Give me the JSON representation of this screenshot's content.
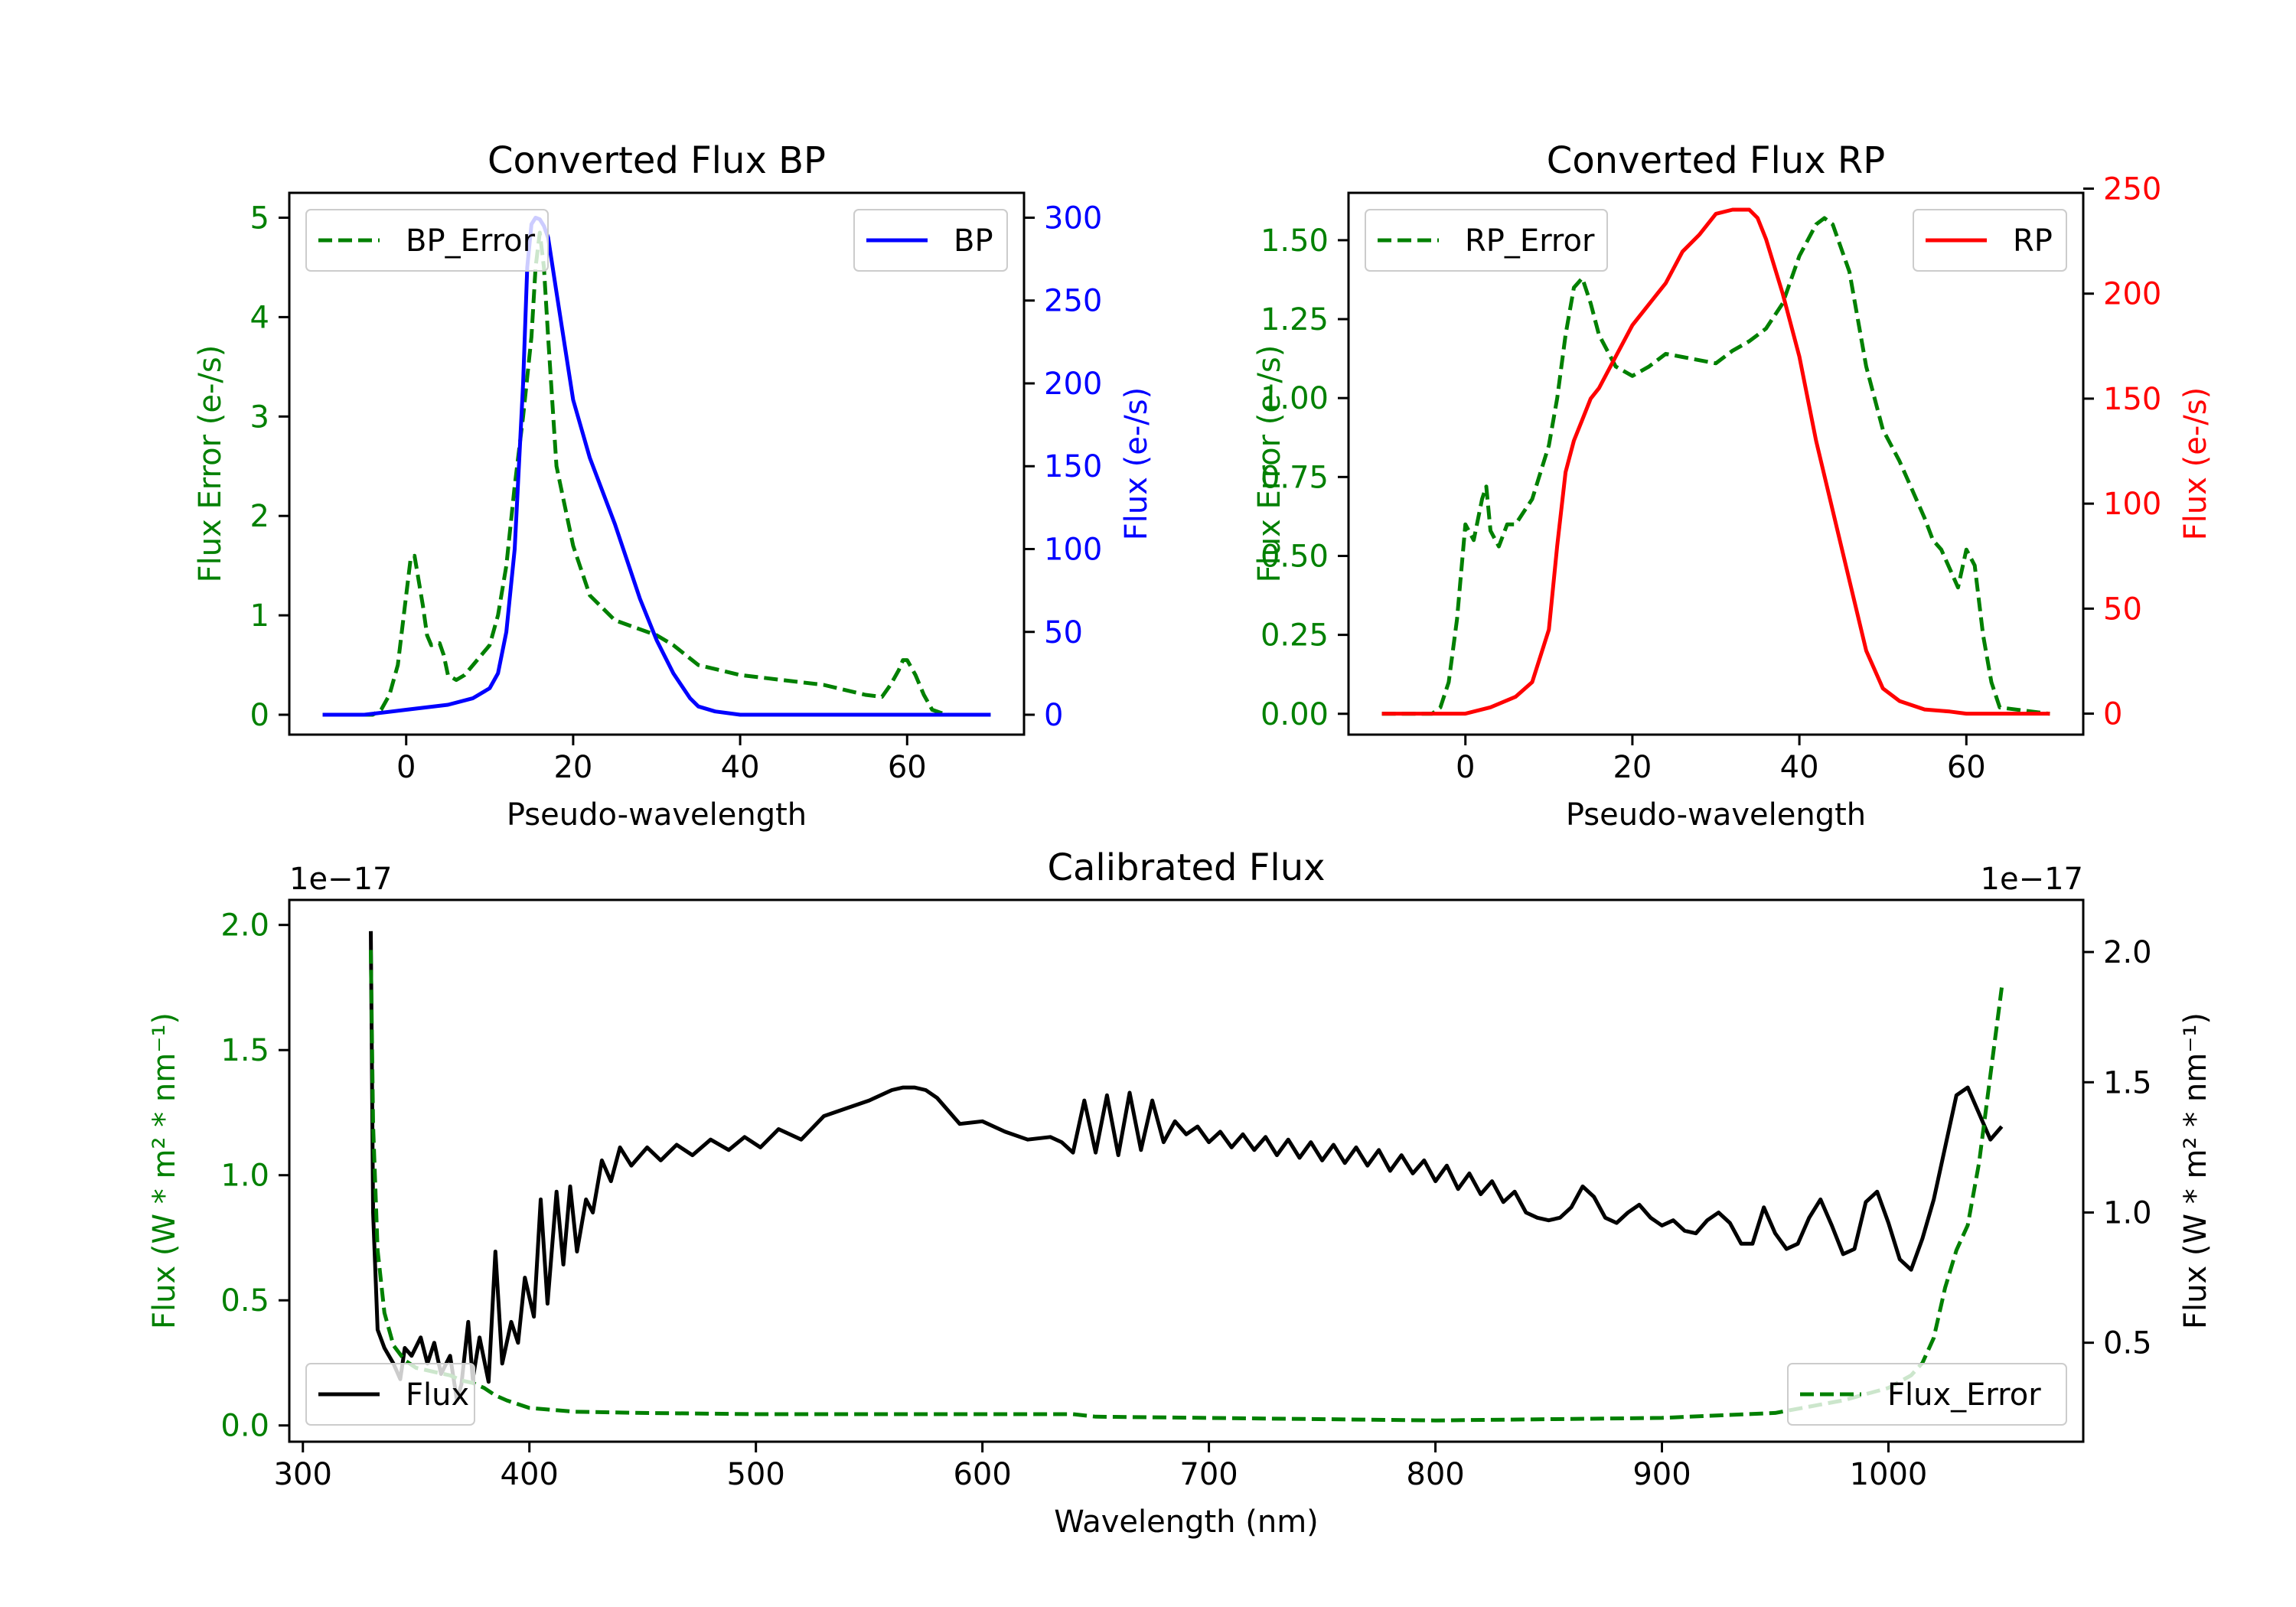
{
  "chart_data": [
    {
      "type": "line",
      "title": "Converted Flux BP",
      "xlabel": "Pseudo-wavelength",
      "ylabel_left": "Flux Error (e-/s)",
      "ylabel_right": "Flux (e-/s)",
      "xlim": [
        -14,
        74
      ],
      "ylim_left": [
        -0.2,
        5.25
      ],
      "ylim_right": [
        -12,
        315
      ],
      "xticks": [
        0,
        20,
        40,
        60
      ],
      "yticks_left": [
        0,
        1,
        2,
        3,
        4,
        5
      ],
      "yticks_right": [
        0,
        50,
        100,
        150,
        200,
        250,
        300
      ],
      "colors": {
        "left": "#008000",
        "right": "#0000ff"
      },
      "series": [
        {
          "name": "BP_Error",
          "axis": "left",
          "style": "dashed",
          "color": "#008000",
          "legend": "top-left",
          "x": [
            -10,
            -4,
            -3,
            -2,
            -1,
            0,
            0.5,
            1,
            2,
            2.5,
            3,
            4,
            4.5,
            5,
            6,
            7,
            8,
            10,
            11,
            12,
            13,
            14,
            15,
            15.5,
            16,
            16.5,
            17,
            18,
            20,
            22,
            25,
            30,
            32,
            35,
            40,
            45,
            50,
            55,
            57,
            58,
            59,
            59.5,
            60,
            61,
            62,
            63,
            64,
            65,
            70
          ],
          "y": [
            0,
            0,
            0.05,
            0.2,
            0.5,
            1.2,
            1.55,
            1.6,
            1.1,
            0.8,
            0.7,
            0.72,
            0.6,
            0.4,
            0.35,
            0.4,
            0.5,
            0.7,
            1,
            1.5,
            2.3,
            3,
            3.8,
            4.5,
            4.85,
            4.5,
            3.8,
            2.5,
            1.7,
            1.2,
            0.95,
            0.8,
            0.7,
            0.5,
            0.4,
            0.35,
            0.3,
            0.2,
            0.18,
            0.3,
            0.45,
            0.55,
            0.55,
            0.4,
            0.2,
            0.05,
            0.02,
            0,
            0
          ]
        },
        {
          "name": "BP",
          "axis": "right",
          "style": "solid",
          "color": "#0000ff",
          "legend": "top-right",
          "x": [
            -10,
            -5,
            0,
            5,
            8,
            10,
            11,
            12,
            13,
            14,
            14.5,
            15,
            15.5,
            16,
            16.5,
            17,
            18,
            20,
            22,
            25,
            28,
            30,
            32,
            34,
            35,
            37,
            40,
            45,
            50,
            55,
            60,
            65,
            70
          ],
          "y": [
            0,
            0,
            3,
            6,
            10,
            16,
            25,
            50,
            100,
            200,
            270,
            296,
            300,
            299,
            295,
            288,
            255,
            190,
            155,
            115,
            70,
            45,
            25,
            10,
            5,
            2,
            0,
            0,
            0,
            0,
            0,
            0,
            0
          ]
        }
      ]
    },
    {
      "type": "line",
      "title": "Converted Flux RP",
      "xlabel": "Pseudo-wavelength",
      "ylabel_left": "Flux Error (e-/s)",
      "ylabel_right": "Flux (e-/s)",
      "xlim": [
        -14,
        74
      ],
      "ylim_left": [
        -0.066,
        1.65
      ],
      "ylim_right": [
        -10,
        248
      ],
      "xticks": [
        0,
        20,
        40,
        60
      ],
      "yticks_left": [
        "0.00",
        "0.25",
        "0.50",
        "0.75",
        "1.00",
        "1.25",
        "1.50"
      ],
      "yticks_right": [
        0,
        50,
        100,
        150,
        200,
        250
      ],
      "colors": {
        "left": "#008000",
        "right": "#ff0000"
      },
      "series": [
        {
          "name": "RP_Error",
          "axis": "left",
          "style": "dashed",
          "color": "#008000",
          "legend": "top-left",
          "x": [
            -10,
            -4,
            -3,
            -2,
            -1,
            0,
            1,
            2,
            2.5,
            3,
            4,
            5,
            6,
            8,
            10,
            11,
            12,
            13,
            14,
            15,
            16,
            18,
            20,
            22,
            24,
            26,
            28,
            30,
            32,
            34,
            36,
            38,
            40,
            42,
            43,
            44,
            46,
            48,
            50,
            52,
            54,
            55,
            56,
            57,
            58,
            59,
            60,
            61,
            62,
            63,
            64,
            70
          ],
          "y": [
            0,
            0,
            0.02,
            0.1,
            0.3,
            0.6,
            0.55,
            0.68,
            0.72,
            0.58,
            0.53,
            0.6,
            0.6,
            0.68,
            0.85,
            1.0,
            1.2,
            1.35,
            1.38,
            1.3,
            1.2,
            1.1,
            1.07,
            1.1,
            1.14,
            1.13,
            1.12,
            1.11,
            1.15,
            1.18,
            1.22,
            1.3,
            1.45,
            1.55,
            1.57,
            1.55,
            1.4,
            1.1,
            0.9,
            0.8,
            0.68,
            0.62,
            0.55,
            0.52,
            0.46,
            0.4,
            0.52,
            0.47,
            0.25,
            0.1,
            0.02,
            0
          ]
        },
        {
          "name": "RP",
          "axis": "right",
          "style": "solid",
          "color": "#ff0000",
          "legend": "top-right",
          "x": [
            -10,
            -5,
            0,
            3,
            6,
            8,
            10,
            11,
            12,
            13,
            14,
            15,
            16,
            18,
            20,
            22,
            24,
            26,
            28,
            30,
            32,
            34,
            35,
            36,
            38,
            40,
            42,
            45,
            48,
            50,
            52,
            55,
            58,
            60,
            62,
            65,
            70
          ],
          "y": [
            0,
            0,
            0,
            3,
            8,
            15,
            40,
            80,
            115,
            130,
            140,
            150,
            155,
            170,
            185,
            195,
            205,
            220,
            228,
            238,
            240,
            240,
            236,
            226,
            200,
            170,
            130,
            80,
            30,
            12,
            6,
            2,
            1,
            0,
            0,
            0,
            0
          ]
        }
      ]
    },
    {
      "type": "line",
      "title": "Calibrated Flux",
      "xlabel": "Wavelength (nm)",
      "ylabel_left": "Flux (W * m² * nm⁻¹)",
      "ylabel_right": "Flux (W * m² * nm⁻¹)",
      "offset_left": "1e−17",
      "offset_right": "1e−17",
      "xlim": [
        294,
        1086
      ],
      "ylim_left": [
        -0.065,
        2.1
      ],
      "ylim_right": [
        0.12,
        2.2
      ],
      "xticks": [
        300,
        400,
        500,
        600,
        700,
        800,
        900,
        1000
      ],
      "yticks_left": [
        "0.0",
        "0.5",
        "1.0",
        "1.5",
        "2.0"
      ],
      "yticks_right": [
        "0.5",
        "1.0",
        "1.5",
        "2.0"
      ],
      "colors": {
        "left": "#008000",
        "right": "#000000"
      },
      "series": [
        {
          "name": "Flux",
          "axis": "right",
          "style": "solid",
          "color": "#000000",
          "legend": "bottom-left",
          "x": [
            330,
            331,
            333,
            336,
            340,
            343,
            345,
            348,
            352,
            355,
            358,
            361,
            365,
            368,
            370,
            373,
            375,
            378,
            382,
            385,
            388,
            392,
            395,
            398,
            402,
            405,
            408,
            412,
            415,
            418,
            421,
            425,
            428,
            432,
            436,
            440,
            445,
            452,
            458,
            465,
            472,
            480,
            488,
            495,
            502,
            510,
            520,
            530,
            540,
            550,
            560,
            565,
            570,
            575,
            580,
            590,
            600,
            610,
            620,
            630,
            635,
            640,
            645,
            650,
            655,
            660,
            665,
            670,
            675,
            680,
            685,
            690,
            695,
            700,
            705,
            710,
            715,
            720,
            725,
            730,
            735,
            740,
            745,
            750,
            755,
            760,
            765,
            770,
            775,
            780,
            785,
            790,
            795,
            800,
            805,
            810,
            815,
            820,
            825,
            830,
            835,
            840,
            845,
            850,
            855,
            860,
            865,
            870,
            875,
            880,
            885,
            890,
            895,
            900,
            905,
            910,
            915,
            920,
            925,
            930,
            935,
            940,
            945,
            950,
            955,
            960,
            965,
            970,
            975,
            980,
            985,
            990,
            995,
            1000,
            1005,
            1010,
            1015,
            1020,
            1025,
            1030,
            1035,
            1040,
            1045,
            1050
          ],
          "y": [
            2.08,
            1.0,
            0.55,
            0.48,
            0.42,
            0.36,
            0.48,
            0.45,
            0.52,
            0.42,
            0.5,
            0.38,
            0.45,
            0.28,
            0.34,
            0.58,
            0.36,
            0.52,
            0.35,
            0.85,
            0.42,
            0.58,
            0.5,
            0.75,
            0.6,
            1.05,
            0.65,
            1.08,
            0.8,
            1.1,
            0.85,
            1.05,
            1.0,
            1.2,
            1.12,
            1.25,
            1.18,
            1.25,
            1.2,
            1.26,
            1.22,
            1.28,
            1.24,
            1.29,
            1.25,
            1.32,
            1.28,
            1.37,
            1.4,
            1.43,
            1.47,
            1.48,
            1.48,
            1.47,
            1.44,
            1.34,
            1.35,
            1.31,
            1.28,
            1.29,
            1.27,
            1.23,
            1.43,
            1.23,
            1.45,
            1.22,
            1.46,
            1.24,
            1.43,
            1.27,
            1.35,
            1.3,
            1.33,
            1.27,
            1.31,
            1.25,
            1.3,
            1.24,
            1.29,
            1.22,
            1.28,
            1.21,
            1.27,
            1.2,
            1.26,
            1.19,
            1.25,
            1.18,
            1.24,
            1.16,
            1.22,
            1.15,
            1.2,
            1.12,
            1.18,
            1.09,
            1.15,
            1.07,
            1.12,
            1.04,
            1.08,
            1.0,
            0.98,
            0.97,
            0.98,
            1.02,
            1.1,
            1.06,
            0.98,
            0.96,
            1.0,
            1.03,
            0.98,
            0.95,
            0.97,
            0.93,
            0.92,
            0.97,
            1.0,
            0.96,
            0.88,
            0.88,
            1.02,
            0.92,
            0.86,
            0.88,
            0.98,
            1.05,
            0.95,
            0.84,
            0.86,
            1.04,
            1.08,
            0.96,
            0.82,
            0.78,
            0.9,
            1.05,
            1.25,
            1.45,
            1.48,
            1.38,
            1.28,
            1.33
          ]
        },
        {
          "name": "Flux_Error",
          "axis": "left",
          "style": "dashed",
          "color": "#008000",
          "legend": "bottom-right",
          "x": [
            330,
            331,
            333,
            336,
            340,
            345,
            350,
            355,
            360,
            365,
            370,
            375,
            380,
            385,
            390,
            400,
            420,
            450,
            500,
            550,
            600,
            640,
            650,
            700,
            800,
            900,
            950,
            980,
            1000,
            1010,
            1015,
            1020,
            1025,
            1030,
            1035,
            1040,
            1045,
            1050
          ],
          "y": [
            1.9,
            1.2,
            0.7,
            0.45,
            0.32,
            0.26,
            0.23,
            0.22,
            0.21,
            0.2,
            0.18,
            0.17,
            0.15,
            0.12,
            0.1,
            0.07,
            0.055,
            0.05,
            0.045,
            0.045,
            0.045,
            0.045,
            0.035,
            0.03,
            0.02,
            0.03,
            0.05,
            0.1,
            0.15,
            0.2,
            0.25,
            0.35,
            0.55,
            0.7,
            0.8,
            1.05,
            1.4,
            1.75
          ]
        }
      ]
    }
  ]
}
